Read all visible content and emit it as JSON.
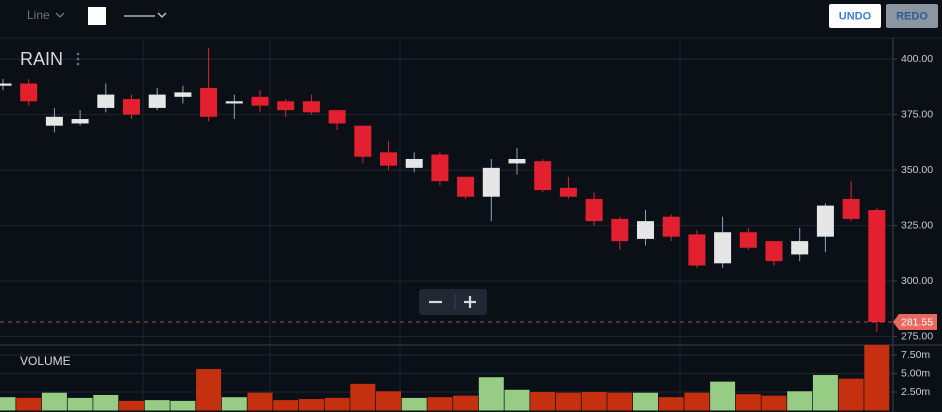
{
  "toolbar": {
    "chart_type": "Line",
    "undo": "UNDO",
    "redo": "REDO"
  },
  "chart_data": [
    {
      "type": "candlestick",
      "title": "RAIN",
      "open": [
        388,
        389,
        370,
        371,
        378,
        382,
        378,
        383,
        387,
        380,
        383,
        381,
        381,
        377,
        370,
        358,
        351,
        357,
        347,
        338,
        353,
        354,
        342,
        337,
        328,
        319,
        329,
        321,
        308,
        322,
        318,
        312,
        320,
        337,
        332
      ],
      "high": [
        391,
        391,
        378,
        377,
        389,
        384,
        387,
        388,
        405,
        384,
        386,
        382,
        384,
        377,
        370,
        363,
        358,
        358,
        347,
        355,
        360,
        355,
        347,
        340,
        329,
        332,
        330,
        323,
        329,
        324,
        318,
        324,
        335,
        345,
        333
      ],
      "low": [
        386,
        379,
        367,
        370,
        376,
        373,
        377,
        380,
        372,
        373,
        376,
        374,
        375,
        368,
        353,
        350,
        349,
        343,
        337,
        327,
        348,
        340,
        337,
        325,
        314,
        316,
        318,
        306,
        306,
        314,
        307,
        309,
        313,
        327,
        277
      ],
      "close": [
        389,
        381,
        374,
        373,
        384,
        375,
        384,
        385,
        374,
        381,
        379,
        377,
        376,
        371,
        356,
        352,
        355,
        345,
        338,
        351,
        355,
        341,
        338,
        327,
        318,
        327,
        320,
        307,
        322,
        315,
        309,
        318,
        334,
        328,
        281.55
      ],
      "up_color": "#e6e6e6",
      "down_color": "#e3202f",
      "up_wick_color": "#7fa6c9",
      "last_price": 281.55,
      "last_price_color": "#e8685f",
      "ylim": [
        271.2,
        409.5
      ],
      "yticks": [
        {
          "value": 275,
          "label": "275.00"
        },
        {
          "value": 300,
          "label": "300.00"
        },
        {
          "value": 325,
          "label": "325.00"
        },
        {
          "value": 350,
          "label": "350.00"
        },
        {
          "value": 375,
          "label": "375.00"
        },
        {
          "value": 400,
          "label": "400.00"
        }
      ],
      "grid": true
    },
    {
      "type": "bar",
      "title": "VOLUME",
      "values": [
        1.8,
        1.7,
        2.4,
        1.7,
        2.1,
        1.3,
        1.4,
        1.3,
        5.6,
        1.8,
        2.4,
        1.4,
        1.55,
        1.7,
        3.6,
        2.6,
        1.7,
        1.8,
        2.0,
        4.5,
        2.8,
        2.5,
        2.4,
        2.5,
        2.4,
        2.4,
        1.8,
        2.4,
        3.9,
        2.2,
        2.0,
        2.6,
        4.8,
        4.3,
        8.85
      ],
      "up_color": "#96cc84",
      "down_color": "#c5310f",
      "ylim": [
        0,
        8.85
      ],
      "yticks": [
        {
          "value": 2.5,
          "label": "2.50m"
        },
        {
          "value": 5,
          "label": "5.00m"
        },
        {
          "value": 7.5,
          "label": "7.50m"
        }
      ],
      "grid": true
    }
  ]
}
